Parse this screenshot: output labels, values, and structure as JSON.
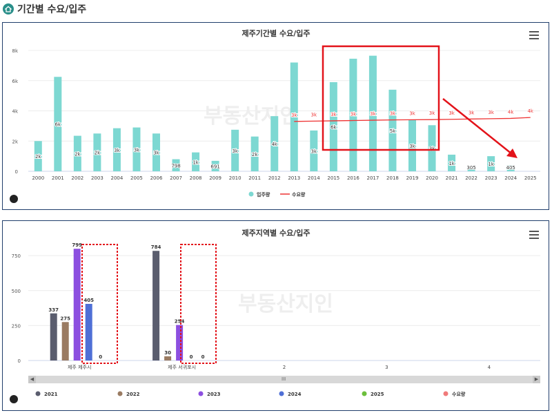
{
  "page": {
    "title": "기간별 수요/입주"
  },
  "chart_data": [
    {
      "type": "bar",
      "title": "제주기간별 수요/입주",
      "categories": [
        "2000",
        "2001",
        "2002",
        "2003",
        "2004",
        "2005",
        "2006",
        "2007",
        "2008",
        "2009",
        "2010",
        "2011",
        "2012",
        "2013",
        "2014",
        "2015",
        "2016",
        "2017",
        "2018",
        "2019",
        "2020",
        "2021",
        "2022",
        "2023",
        "2024",
        "2025"
      ],
      "series": [
        {
          "name": "입주량",
          "kind": "bar",
          "color": "#7dd8d2",
          "values": [
            2000,
            6250,
            2350,
            2500,
            2850,
            2900,
            2500,
            798,
            1250,
            691,
            2750,
            2300,
            3650,
            7200,
            2700,
            5900,
            7450,
            7650,
            5400,
            3400,
            3050,
            1100,
            305,
            1000,
            405,
            0
          ],
          "labels": [
            "2k",
            "6k",
            "2k",
            "2k",
            "3k",
            "3k",
            "3k",
            "798",
            "1k",
            "691",
            "3k",
            "2k",
            "4k",
            "",
            "3k",
            "6k",
            "",
            "",
            "5k",
            "3k",
            "3k",
            "1k",
            "305",
            "1k",
            "405",
            ""
          ]
        },
        {
          "name": "수요량",
          "kind": "line",
          "color": "#ee3333",
          "x": [
            "2013",
            "2014",
            "2015",
            "2016",
            "2017",
            "2018",
            "2019",
            "2020",
            "2021",
            "2022",
            "2023",
            "2024",
            "2025"
          ],
          "values": [
            3300,
            3320,
            3340,
            3360,
            3380,
            3400,
            3410,
            3420,
            3440,
            3460,
            3480,
            3500,
            3560
          ],
          "labels": [
            "3k",
            "3k",
            "3k",
            "3k",
            "3k",
            "3k",
            "3k",
            "3k",
            "3k",
            "3k",
            "3k",
            "4k",
            "4k"
          ]
        }
      ],
      "yticks": [
        "0",
        "2k",
        "4k",
        "6k",
        "8k"
      ],
      "ylim": [
        0,
        8000
      ],
      "legend": "bottom"
    },
    {
      "type": "bar",
      "title": "제주지역별 수요/입주",
      "categories": [
        "제주 제주시",
        "제주 서귀포시",
        "2",
        "3",
        "4"
      ],
      "series": [
        {
          "name": "2021",
          "color": "#5a5d6e",
          "values": [
            337,
            784,
            null,
            null,
            null
          ],
          "labels": [
            "337",
            "784",
            "",
            "",
            ""
          ]
        },
        {
          "name": "2022",
          "color": "#9a7b62",
          "values": [
            275,
            30,
            null,
            null,
            null
          ],
          "labels": [
            "275",
            "30",
            "",
            "",
            ""
          ]
        },
        {
          "name": "2023",
          "color": "#8c4fe0",
          "values": [
            799,
            254,
            null,
            null,
            null
          ],
          "labels": [
            "799",
            "254",
            "",
            "",
            ""
          ]
        },
        {
          "name": "2024",
          "color": "#4f6fd6",
          "values": [
            405,
            0,
            null,
            null,
            null
          ],
          "labels": [
            "405",
            "0",
            "",
            "",
            ""
          ]
        },
        {
          "name": "2025",
          "color": "#6cbf3c",
          "values": [
            0,
            0,
            null,
            null,
            null
          ],
          "labels": [
            "0",
            "0",
            "",
            "",
            ""
          ]
        },
        {
          "name": "수요량",
          "color": "#f07a7a",
          "values": [
            null,
            null,
            null,
            null,
            null
          ],
          "labels": [
            "",
            "",
            "",
            "",
            ""
          ]
        }
      ],
      "yticks": [
        "0",
        "250",
        "500",
        "750"
      ],
      "ylim": [
        0,
        800
      ],
      "legend": "bottom",
      "scrollbar_grip": "III"
    }
  ]
}
